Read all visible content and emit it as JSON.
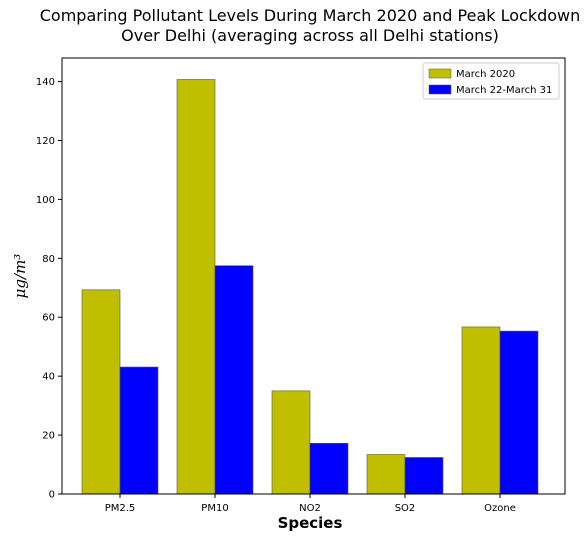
{
  "chart_data": {
    "type": "bar",
    "title_lines": [
      "Comparing Pollutant Levels During March 2020 and Peak Lockdown",
      "Over Delhi (averaging across all Delhi stations)"
    ],
    "xlabel": "Species",
    "ylabel": "μg/m³",
    "categories": [
      "PM2.5",
      "PM10",
      "NO2",
      "SO2",
      "Ozone"
    ],
    "series": [
      {
        "name": "March 2020",
        "color": "#bfbf00",
        "values": [
          69.3,
          140.7,
          35.0,
          13.4,
          56.7
        ]
      },
      {
        "name": "March 22-March 31",
        "color": "#0000ff",
        "values": [
          43.1,
          77.5,
          17.2,
          12.4,
          55.3
        ]
      }
    ],
    "ylim": [
      0,
      148
    ],
    "yticks": [
      0,
      20,
      40,
      60,
      80,
      100,
      120,
      140
    ],
    "grid": false,
    "legend_position": "top-right"
  }
}
